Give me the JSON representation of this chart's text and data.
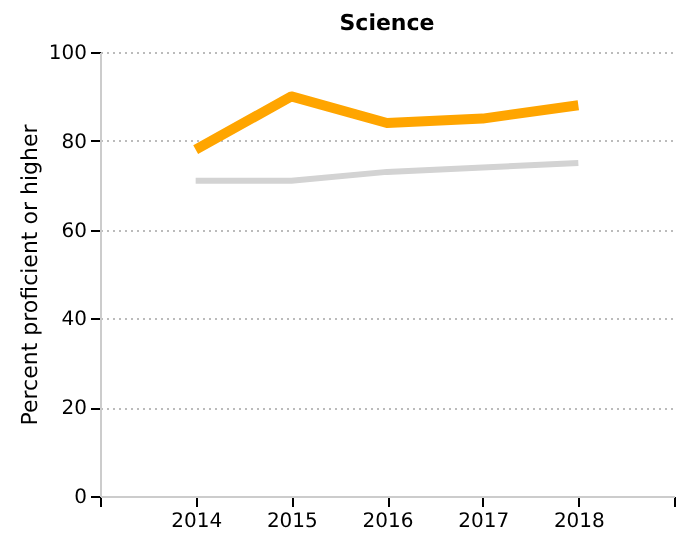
{
  "chart_data": {
    "type": "line",
    "title": "Science",
    "ylabel": "Percent proficient or higher",
    "x": [
      2014,
      2015,
      2016,
      2017,
      2018
    ],
    "series": [
      {
        "color": "#ffa500",
        "values": [
          78,
          90,
          84,
          85,
          88
        ]
      },
      {
        "color": "#d3d3d3",
        "values": [
          71,
          71,
          73,
          74,
          75
        ]
      }
    ],
    "xlim": [
      2013,
      2019
    ],
    "xticks": [
      {
        "value": 2013,
        "label": null
      },
      2014,
      2015,
      2016,
      2017,
      2018,
      {
        "value": 2019,
        "label": null
      }
    ],
    "ylim": [
      0,
      100
    ],
    "yticks": [
      0,
      20,
      40,
      60,
      80,
      100
    ],
    "grid": "y",
    "marker": "none",
    "line_style": "solid"
  }
}
